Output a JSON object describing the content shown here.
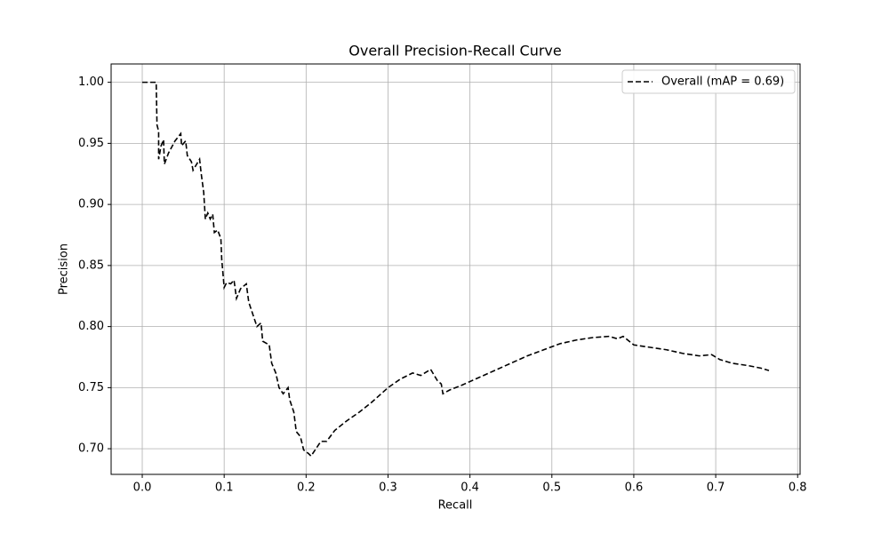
{
  "chart_data": {
    "type": "line",
    "title": "Overall Precision-Recall Curve",
    "x_label": "Recall",
    "y_label": "Precision",
    "x": [
      0,
      0.017,
      0.018,
      0.02,
      0.02,
      0.023,
      0.026,
      0.027,
      0.032,
      0.04,
      0.047,
      0.048,
      0.053,
      0.055,
      0.06,
      0.062,
      0.07,
      0.072,
      0.075,
      0.077,
      0.08,
      0.083,
      0.086,
      0.088,
      0.092,
      0.096,
      0.097,
      0.1,
      0.103,
      0.108,
      0.112,
      0.115,
      0.12,
      0.127,
      0.13,
      0.135,
      0.14,
      0.145,
      0.147,
      0.155,
      0.158,
      0.163,
      0.167,
      0.172,
      0.178,
      0.18,
      0.185,
      0.188,
      0.193,
      0.197,
      0.203,
      0.206,
      0.212,
      0.218,
      0.225,
      0.235,
      0.25,
      0.265,
      0.28,
      0.3,
      0.315,
      0.33,
      0.34,
      0.352,
      0.36,
      0.365,
      0.367,
      0.375,
      0.39,
      0.41,
      0.43,
      0.45,
      0.47,
      0.49,
      0.51,
      0.53,
      0.55,
      0.57,
      0.58,
      0.587,
      0.6,
      0.62,
      0.64,
      0.66,
      0.68,
      0.695,
      0.705,
      0.72,
      0.74,
      0.755,
      0.765
    ],
    "series": [
      {
        "name": "Overall (mAP = 0.69)",
        "color": "#000000",
        "dash": "6,3",
        "values": [
          1.0,
          1.0,
          0.965,
          0.96,
          0.937,
          0.948,
          0.953,
          0.933,
          0.942,
          0.952,
          0.958,
          0.948,
          0.952,
          0.94,
          0.935,
          0.928,
          0.937,
          0.925,
          0.91,
          0.888,
          0.893,
          0.888,
          0.892,
          0.877,
          0.879,
          0.872,
          0.855,
          0.832,
          0.836,
          0.835,
          0.838,
          0.823,
          0.831,
          0.835,
          0.82,
          0.81,
          0.8,
          0.803,
          0.788,
          0.785,
          0.77,
          0.762,
          0.75,
          0.745,
          0.75,
          0.74,
          0.73,
          0.714,
          0.71,
          0.699,
          0.696,
          0.694,
          0.7,
          0.706,
          0.706,
          0.715,
          0.723,
          0.73,
          0.738,
          0.75,
          0.757,
          0.762,
          0.76,
          0.765,
          0.756,
          0.753,
          0.745,
          0.748,
          0.752,
          0.758,
          0.764,
          0.77,
          0.776,
          0.781,
          0.786,
          0.789,
          0.791,
          0.792,
          0.79,
          0.792,
          0.785,
          0.783,
          0.781,
          0.778,
          0.776,
          0.777,
          0.773,
          0.77,
          0.768,
          0.766,
          0.764
        ]
      }
    ],
    "xlim": [
      -0.038,
      0.803
    ],
    "ylim": [
      0.679,
      1.015
    ],
    "xticks": [
      {
        "value": 0,
        "label": "0.0"
      },
      0.1,
      0.2,
      0.3,
      0.4,
      0.5,
      0.6,
      0.7,
      0.8
    ],
    "yticks": [
      {
        "value": 0.7,
        "label": "0.70"
      },
      0.75,
      {
        "value": 0.8,
        "label": "0.80"
      },
      0.85,
      {
        "value": 0.9,
        "label": "0.90"
      },
      0.95,
      {
        "value": 1.0,
        "label": "1.00"
      }
    ],
    "grid": true,
    "legend_position": "upper-right"
  }
}
